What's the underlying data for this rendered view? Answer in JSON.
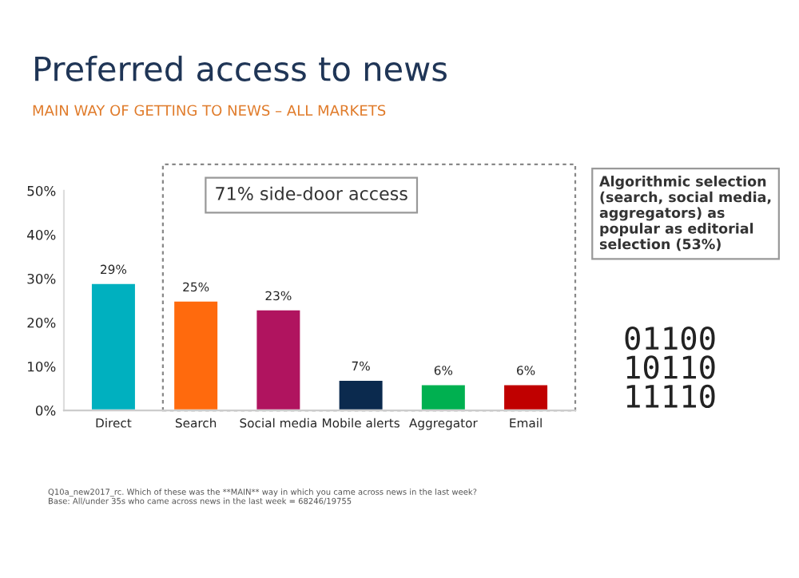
{
  "chart_data": {
    "type": "bar",
    "title": "Preferred access to news",
    "subtitle": "MAIN WAY OF GETTING TO NEWS – ALL MARKETS",
    "categories": [
      "Direct",
      "Search",
      "Social media",
      "Mobile alerts",
      "Aggregator",
      "Email"
    ],
    "values": [
      29,
      25,
      23,
      7,
      6,
      6
    ],
    "colors": [
      "#00b0bf",
      "#ff6a0d",
      "#b0145f",
      "#0b2a4e",
      "#00b050",
      "#c00000"
    ],
    "value_labels": [
      "29%",
      "25%",
      "23%",
      "7%",
      "6%",
      "6%"
    ],
    "ylim": [
      0,
      50
    ],
    "yticks": [
      {
        "value": 0,
        "label": "0%"
      },
      {
        "value": 10,
        "label": "10%"
      },
      {
        "value": 20,
        "label": "20%"
      },
      {
        "value": 30,
        "label": "30%"
      },
      {
        "value": 40,
        "label": "40%"
      },
      {
        "value": 50,
        "label": "50%"
      }
    ],
    "grid": false,
    "annotations": [
      "71% side-door access",
      "Algorithmic selection\n(search, social media,\naggregators) as\npopular as editorial\nselection (53%)",
      "01100\n10110\n11110",
      "Q10a_new2017_rc. Which of these was the **MAIN** way in which you came across news in the last week?\nBase: All/under 35s who came across news in the last week = 68246/19755"
    ]
  }
}
